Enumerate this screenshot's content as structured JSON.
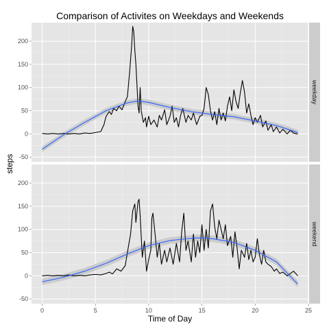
{
  "chart_data": {
    "type": "line",
    "title": "Comparison of Activites on Weekdays and Weekends",
    "xlabel": "Time of Day",
    "ylabel": "steps",
    "xlim": [
      -1,
      25
    ],
    "ylim": [
      -60,
      240
    ],
    "x_ticks": [
      0,
      5,
      10,
      15,
      20,
      25
    ],
    "y_ticks": [
      -50,
      0,
      50,
      100,
      150,
      200
    ],
    "grid": true,
    "colors": {
      "panel_bg": "#e5e5e5",
      "grid_major": "#ffffff",
      "strip_bg": "#cccccc",
      "line": "#000000",
      "smooth": "#3366ff",
      "ribbon": "#c7c7c7"
    },
    "facets": [
      {
        "label": "weekday",
        "series": [
          {
            "values": [
              [
                0,
                1
              ],
              [
                0.5,
                0
              ],
              [
                1,
                1
              ],
              [
                1.5,
                0
              ],
              [
                2,
                1
              ],
              [
                2.5,
                0
              ],
              [
                3,
                1
              ],
              [
                3.5,
                0
              ],
              [
                4,
                2
              ],
              [
                4.5,
                1
              ],
              [
                5,
                3
              ],
              [
                5.5,
                5
              ],
              [
                5.8,
                20
              ],
              [
                6,
                38
              ],
              [
                6.3,
                48
              ],
              [
                6.5,
                42
              ],
              [
                6.7,
                55
              ],
              [
                7,
                50
              ],
              [
                7.2,
                60
              ],
              [
                7.5,
                52
              ],
              [
                7.8,
                70
              ],
              [
                8,
                80
              ],
              [
                8.2,
                130
              ],
              [
                8.4,
                190
              ],
              [
                8.5,
                232
              ],
              [
                8.6,
                220
              ],
              [
                8.7,
                180
              ],
              [
                8.8,
                150
              ],
              [
                9,
                60
              ],
              [
                9.1,
                45
              ],
              [
                9.2,
                100
              ],
              [
                9.3,
                50
              ],
              [
                9.5,
                25
              ],
              [
                9.7,
                35
              ],
              [
                9.8,
                15
              ],
              [
                10,
                38
              ],
              [
                10.2,
                20
              ],
              [
                10.5,
                30
              ],
              [
                10.8,
                15
              ],
              [
                11,
                40
              ],
              [
                11.2,
                30
              ],
              [
                11.5,
                52
              ],
              [
                11.7,
                20
              ],
              [
                12,
                38
              ],
              [
                12.2,
                60
              ],
              [
                12.4,
                25
              ],
              [
                12.6,
                35
              ],
              [
                12.8,
                15
              ],
              [
                13,
                40
              ],
              [
                13.2,
                55
              ],
              [
                13.5,
                25
              ],
              [
                13.7,
                40
              ],
              [
                14,
                30
              ],
              [
                14.2,
                45
              ],
              [
                14.5,
                20
              ],
              [
                14.8,
                38
              ],
              [
                15,
                40
              ],
              [
                15.2,
                55
              ],
              [
                15.4,
                100
              ],
              [
                15.6,
                85
              ],
              [
                15.8,
                50
              ],
              [
                16,
                30
              ],
              [
                16.2,
                48
              ],
              [
                16.4,
                20
              ],
              [
                16.6,
                55
              ],
              [
                16.8,
                30
              ],
              [
                17,
                45
              ],
              [
                17.2,
                28
              ],
              [
                17.4,
                60
              ],
              [
                17.6,
                80
              ],
              [
                17.8,
                50
              ],
              [
                18,
                95
              ],
              [
                18.2,
                70
              ],
              [
                18.4,
                55
              ],
              [
                18.6,
                88
              ],
              [
                18.8,
                115
              ],
              [
                19,
                90
              ],
              [
                19.2,
                45
              ],
              [
                19.4,
                65
              ],
              [
                19.6,
                40
              ],
              [
                19.8,
                20
              ],
              [
                20,
                35
              ],
              [
                20.2,
                25
              ],
              [
                20.5,
                40
              ],
              [
                20.7,
                15
              ],
              [
                21,
                28
              ],
              [
                21.2,
                8
              ],
              [
                21.5,
                20
              ],
              [
                21.7,
                5
              ],
              [
                22,
                15
              ],
              [
                22.3,
                2
              ],
              [
                22.6,
                10
              ],
              [
                23,
                0
              ],
              [
                23.3,
                8
              ],
              [
                23.6,
                2
              ],
              [
                24,
                0
              ]
            ]
          }
        ],
        "smooth": [
          [
            0,
            -33
          ],
          [
            2,
            -2
          ],
          [
            4,
            25
          ],
          [
            6,
            50
          ],
          [
            8,
            67
          ],
          [
            9,
            71
          ],
          [
            10,
            68
          ],
          [
            12,
            57
          ],
          [
            14,
            48
          ],
          [
            16,
            42
          ],
          [
            18,
            37
          ],
          [
            20,
            28
          ],
          [
            22,
            18
          ],
          [
            24,
            3
          ]
        ],
        "ribbon_halfwidth": 6
      },
      {
        "label": "weekend",
        "series": [
          {
            "values": [
              [
                0,
                0
              ],
              [
                0.5,
                1
              ],
              [
                1,
                0
              ],
              [
                1.5,
                1
              ],
              [
                2,
                0
              ],
              [
                2.5,
                2
              ],
              [
                3,
                0
              ],
              [
                3.5,
                1
              ],
              [
                4,
                0
              ],
              [
                4.5,
                2
              ],
              [
                5,
                3
              ],
              [
                5.5,
                2
              ],
              [
                6,
                5
              ],
              [
                6.3,
                8
              ],
              [
                6.6,
                4
              ],
              [
                7,
                15
              ],
              [
                7.4,
                10
              ],
              [
                7.8,
                22
              ],
              [
                8,
                50
              ],
              [
                8.3,
                90
              ],
              [
                8.5,
                140
              ],
              [
                8.7,
                155
              ],
              [
                8.8,
                115
              ],
              [
                9,
                160
              ],
              [
                9.1,
                165
              ],
              [
                9.2,
                130
              ],
              [
                9.4,
                40
              ],
              [
                9.6,
                75
              ],
              [
                9.8,
                10
              ],
              [
                10,
                35
              ],
              [
                10.2,
                55
              ],
              [
                10.3,
                125
              ],
              [
                10.4,
                135
              ],
              [
                10.6,
                90
              ],
              [
                10.8,
                40
              ],
              [
                11,
                70
              ],
              [
                11.2,
                25
              ],
              [
                11.5,
                55
              ],
              [
                11.7,
                30
              ],
              [
                12,
                60
              ],
              [
                12.3,
                25
              ],
              [
                12.6,
                70
              ],
              [
                12.9,
                30
              ],
              [
                13.1,
                95
              ],
              [
                13.3,
                135
              ],
              [
                13.5,
                55
              ],
              [
                13.7,
                75
              ],
              [
                14,
                30
              ],
              [
                14.2,
                90
              ],
              [
                14.4,
                40
              ],
              [
                14.6,
                75
              ],
              [
                14.8,
                50
              ],
              [
                15,
                110
              ],
              [
                15.2,
                55
              ],
              [
                15.4,
                100
              ],
              [
                15.6,
                60
              ],
              [
                15.8,
                140
              ],
              [
                16,
                155
              ],
              [
                16.2,
                105
              ],
              [
                16.4,
                80
              ],
              [
                16.6,
                120
              ],
              [
                16.8,
                100
              ],
              [
                17,
                80
              ],
              [
                17.2,
                110
              ],
              [
                17.4,
                65
              ],
              [
                17.7,
                85
              ],
              [
                17.9,
                40
              ],
              [
                18.1,
                95
              ],
              [
                18.3,
                60
              ],
              [
                18.5,
                15
              ],
              [
                18.7,
                55
              ],
              [
                19,
                40
              ],
              [
                19.2,
                70
              ],
              [
                19.4,
                35
              ],
              [
                19.6,
                55
              ],
              [
                19.8,
                30
              ],
              [
                20,
                40
              ],
              [
                20.2,
                80
              ],
              [
                20.4,
                45
              ],
              [
                20.6,
                25
              ],
              [
                20.8,
                55
              ],
              [
                21,
                30
              ],
              [
                21.2,
                25
              ],
              [
                21.5,
                20
              ],
              [
                21.8,
                10
              ],
              [
                22,
                15
              ],
              [
                22.3,
                5
              ],
              [
                22.6,
                8
              ],
              [
                23,
                0
              ],
              [
                23.3,
                5
              ],
              [
                23.6,
                10
              ],
              [
                24,
                0
              ]
            ]
          }
        ],
        "smooth": [
          [
            0,
            -13
          ],
          [
            2,
            -3
          ],
          [
            4,
            10
          ],
          [
            6,
            27
          ],
          [
            8,
            47
          ],
          [
            10,
            65
          ],
          [
            12,
            76
          ],
          [
            14,
            81
          ],
          [
            15,
            82
          ],
          [
            16,
            80
          ],
          [
            18,
            72
          ],
          [
            20,
            55
          ],
          [
            22,
            30
          ],
          [
            24,
            -18
          ]
        ],
        "ribbon_halfwidth": 7
      }
    ]
  }
}
